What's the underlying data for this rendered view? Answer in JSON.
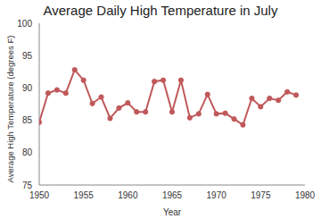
{
  "chart_data": {
    "type": "line",
    "title": "Average Daily High Temperature in July",
    "x_label": "Year",
    "y_label": "Average High Temperature (degrees F)",
    "x": [
      1950,
      1951,
      1952,
      1953,
      1954,
      1955,
      1956,
      1957,
      1958,
      1959,
      1960,
      1961,
      1962,
      1963,
      1964,
      1965,
      1966,
      1967,
      1968,
      1969,
      1970,
      1971,
      1972,
      1973,
      1974,
      1975,
      1976,
      1977,
      1978,
      1979
    ],
    "values": [
      84.7,
      89.2,
      89.7,
      89.2,
      92.8,
      91.2,
      87.6,
      88.6,
      85.3,
      86.9,
      87.7,
      86.3,
      86.3,
      91.0,
      91.2,
      86.3,
      91.2,
      85.4,
      86.0,
      89.0,
      86.0,
      86.1,
      85.2,
      84.3,
      88.4,
      87.1,
      88.4,
      88.1,
      89.4,
      88.9
    ],
    "color": "#c0585a",
    "marker": "circle",
    "xlim": [
      1950,
      1980
    ],
    "xticks": [
      1950,
      1955,
      1960,
      1965,
      1970,
      1975,
      1980
    ],
    "ylim": [
      75,
      100
    ],
    "yticks": [
      75,
      80,
      85,
      90,
      95,
      100
    ],
    "grid": false
  }
}
